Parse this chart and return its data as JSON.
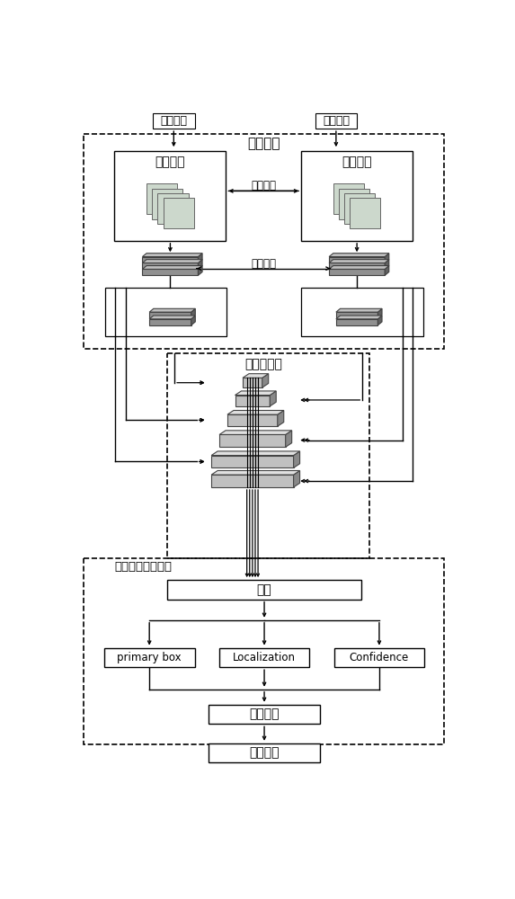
{
  "bg_color": "#ffffff",
  "title_siamese": "孂生网络",
  "title_pyramid": "金字塔结构",
  "title_classnet": "分类定位并行网络",
  "label_target_img": "目标图像",
  "label_search_img": "搜索图像",
  "label_target_subnet": "目标子网",
  "label_search_subnet": "搜索子网",
  "label_shared_params": "共享参数",
  "label_feature_extract": "特征提取",
  "label_conv": "卷积",
  "label_localize": "定位目标",
  "label_track": "跟踪目标",
  "label_primary": "primary box",
  "label_localization": "Localization",
  "label_confidence": "Confidence",
  "fig_width": 5.73,
  "fig_height": 10.0
}
